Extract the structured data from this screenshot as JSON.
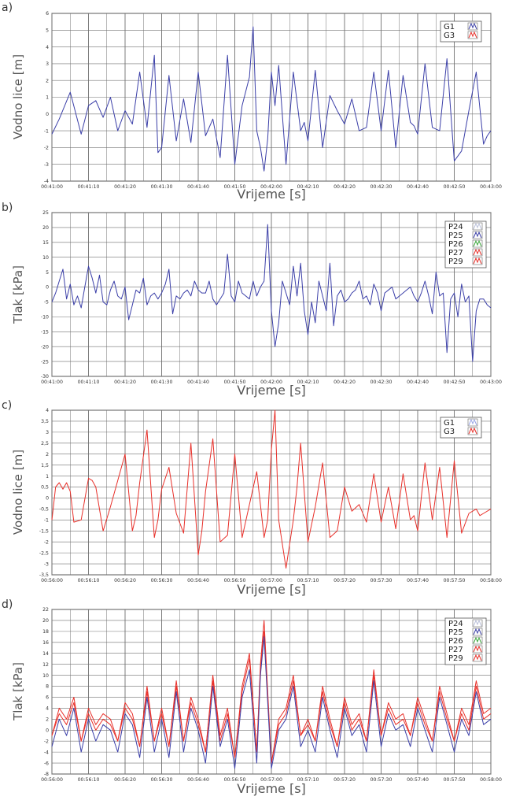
{
  "colors": {
    "blue": "#3b3fa8",
    "red": "#e8302a",
    "green": "#3aa63a",
    "lightblue": "#9aa6e6",
    "grid": "#707070"
  },
  "chart_data": [
    {
      "panel_label": "a)",
      "type": "line",
      "ylabel": "Vodno lice [m]",
      "xlabel": "Vrijeme [s]",
      "ylim": [
        -4,
        6
      ],
      "y_ticks": [
        "-4",
        "-3",
        "-2",
        "-1",
        "0",
        "1",
        "2",
        "3",
        "4",
        "5",
        "6"
      ],
      "x_ticks": [
        "00:41:00",
        "00:41:10",
        "00:41:20",
        "00:41:30",
        "00:41:40",
        "00:41:50",
        "00:42:00",
        "00:42:10",
        "00:42:20",
        "00:42:30",
        "00:42:40",
        "00:42:50",
        "00:43:00"
      ],
      "grid": true,
      "legend_position": "top-right",
      "legend": [
        "G1",
        "G3"
      ],
      "series": [
        {
          "name": "G1",
          "color": "#3b3fa8",
          "x": [
            0,
            2,
            5,
            8,
            10,
            12,
            14,
            16,
            18,
            20,
            22,
            24,
            26,
            28,
            29,
            30,
            32,
            34,
            36,
            38,
            40,
            42,
            44,
            46,
            48,
            50,
            52,
            54,
            55,
            56,
            57,
            58,
            59,
            60,
            61,
            62,
            64,
            66,
            68,
            69,
            70,
            72,
            74,
            76,
            78,
            80,
            82,
            84,
            86,
            88,
            90,
            92,
            94,
            96,
            98,
            99,
            100,
            102,
            104,
            106,
            108,
            110,
            112,
            114,
            116,
            118,
            119,
            120
          ],
          "values": [
            -1.2,
            -0.3,
            1.3,
            -1.2,
            0.5,
            0.8,
            -0.2,
            1.0,
            -1.0,
            0.2,
            -0.6,
            2.5,
            -0.8,
            3.5,
            -2.3,
            -2.0,
            2.3,
            -1.6,
            0.9,
            -1.7,
            2.5,
            -1.3,
            -0.3,
            -2.6,
            3.5,
            -3.0,
            0.5,
            2.2,
            5.2,
            -1.0,
            -2.0,
            -3.4,
            -1.5,
            2.5,
            0.5,
            2.9,
            -3.0,
            2.5,
            -1.0,
            -0.5,
            -1.6,
            2.6,
            -2.0,
            1.1,
            0.2,
            -0.6,
            0.9,
            -1.0,
            -0.8,
            2.5,
            -1.0,
            2.6,
            -2.0,
            2.3,
            -0.5,
            -0.7,
            -1.2,
            3.0,
            -0.8,
            -1.0,
            3.3,
            -2.8,
            -2.2,
            0.2,
            2.5,
            -1.8,
            -1.3,
            -1.0
          ]
        },
        {
          "name": "G3",
          "color": "#e8302a",
          "x": [],
          "values": []
        }
      ]
    },
    {
      "panel_label": "b)",
      "type": "line",
      "ylabel": "Tlak [kPa]",
      "xlabel": "Vrijeme [s]",
      "ylim": [
        -30,
        25
      ],
      "y_ticks": [
        "-30",
        "-25",
        "-20",
        "-15",
        "-10",
        "-5",
        "0",
        "5",
        "10",
        "15",
        "20",
        "25"
      ],
      "x_ticks": [
        "00:41:00",
        "00:41:10",
        "00:41:20",
        "00:41:30",
        "00:41:40",
        "00:41:50",
        "00:42:00",
        "00:42:10",
        "00:42:20",
        "00:42:30",
        "00:42:40",
        "00:42:50",
        "00:43:00"
      ],
      "grid": true,
      "legend_position": "top-right",
      "legend": [
        "P24",
        "P25",
        "P26",
        "P27",
        "P29"
      ],
      "series": [
        {
          "name": "P25",
          "color": "#3b3fa8",
          "x": [
            0,
            1,
            2,
            3,
            4,
            5,
            6,
            7,
            8,
            9,
            10,
            11,
            12,
            13,
            14,
            15,
            16,
            17,
            18,
            19,
            20,
            21,
            22,
            23,
            24,
            25,
            26,
            27,
            28,
            29,
            30,
            31,
            32,
            33,
            34,
            35,
            36,
            37,
            38,
            39,
            40,
            41,
            42,
            43,
            44,
            45,
            46,
            47,
            48,
            49,
            50,
            51,
            52,
            53,
            54,
            55,
            56,
            57,
            58,
            59,
            60,
            61,
            62,
            63,
            64,
            65,
            66,
            67,
            68,
            69,
            70,
            71,
            72,
            73,
            74,
            75,
            76,
            77,
            78,
            79,
            80,
            81,
            82,
            83,
            84,
            85,
            86,
            87,
            88,
            89,
            90,
            91,
            92,
            93,
            94,
            95,
            96,
            97,
            98,
            99,
            100,
            101,
            102,
            103,
            104,
            105,
            106,
            107,
            108,
            109,
            110,
            111,
            112,
            113,
            114,
            115,
            116,
            117,
            118,
            119,
            120
          ],
          "values": [
            -5,
            -2,
            2,
            6,
            -4,
            1,
            -6,
            -3,
            -7,
            0,
            7,
            3,
            -2,
            4,
            -5,
            -6,
            -1,
            2,
            -3,
            -4,
            0,
            -11,
            -6,
            -1,
            -2,
            3,
            -6,
            -3,
            -2,
            -4,
            -2,
            1,
            6,
            -9,
            -3,
            -4,
            -2,
            -1,
            -3,
            2,
            -1,
            -2,
            -2,
            2,
            -4,
            -6,
            -4,
            -2,
            11,
            -3,
            -5,
            2,
            -2,
            -3,
            -4,
            2,
            -3,
            0,
            2,
            21,
            -8,
            -20,
            -12,
            2,
            -2,
            -6,
            7,
            -3,
            8,
            -8,
            -16,
            -5,
            -12,
            2,
            -3,
            -8,
            8,
            -13,
            -3,
            -1,
            -5,
            -4,
            -2,
            -1,
            2,
            -4,
            -3,
            -6,
            1,
            -2,
            -8,
            -2,
            -1,
            0,
            -4,
            -3,
            -2,
            -1,
            0,
            -3,
            -5,
            -2,
            2,
            -3,
            -9,
            5,
            -3,
            -2,
            -22,
            -4,
            -2,
            -10,
            1,
            -5,
            -3,
            -25,
            -8,
            -4,
            -4,
            -6,
            -7
          ]
        }
      ]
    },
    {
      "panel_label": "c)",
      "type": "line",
      "ylabel": "Vodno lice [m]",
      "xlabel": "Vrijeme [s]",
      "ylim": [
        -3.5,
        4
      ],
      "y_ticks": [
        "-3,5",
        "-3",
        "-2,5",
        "-2",
        "-1,5",
        "-1",
        "-0,5",
        "0",
        "0,5",
        "1",
        "1,5",
        "2",
        "2,5",
        "3",
        "3,5",
        "4"
      ],
      "x_ticks": [
        "00:56:00",
        "00:56:10",
        "00:56:20",
        "00:56:30",
        "00:56:40",
        "00:56:50",
        "00:57:00",
        "00:57:10",
        "00:57:20",
        "00:57:30",
        "00:57:40",
        "00:57:50",
        "00:58:00"
      ],
      "grid": true,
      "legend_position": "top-right",
      "legend": [
        "G1",
        "G3"
      ],
      "series": [
        {
          "name": "G1",
          "color": "#9aa6e6",
          "x": [],
          "values": []
        },
        {
          "name": "G3",
          "color": "#e8302a",
          "x": [
            0,
            1,
            2,
            3,
            4,
            5,
            6,
            8,
            10,
            11,
            12,
            14,
            16,
            18,
            20,
            22,
            23,
            24,
            26,
            28,
            29,
            30,
            32,
            34,
            36,
            38,
            40,
            41,
            42,
            44,
            46,
            48,
            50,
            52,
            54,
            56,
            58,
            59,
            60,
            61,
            62,
            64,
            66,
            67,
            68,
            70,
            72,
            74,
            76,
            78,
            80,
            82,
            84,
            86,
            88,
            90,
            92,
            94,
            96,
            98,
            99,
            100,
            102,
            104,
            106,
            108,
            110,
            112,
            114,
            116,
            117,
            118,
            120
          ],
          "values": [
            -1,
            0.5,
            0.7,
            0.4,
            0.7,
            0.3,
            -1.1,
            -1.0,
            0.9,
            0.8,
            0.5,
            -1.5,
            -0.4,
            0.8,
            2,
            -1.5,
            -0.8,
            0.7,
            3.1,
            -1.8,
            -1.0,
            0.4,
            1.4,
            -0.7,
            -1.6,
            2.5,
            -2.6,
            -1.5,
            0.3,
            2.7,
            -2.0,
            -1.7,
            2.0,
            -1.8,
            -0.3,
            1.2,
            -1.8,
            -1.0,
            2.2,
            4.0,
            -1.0,
            -3.2,
            -1.0,
            0.5,
            2.5,
            -2.0,
            -0.4,
            1.6,
            -1.8,
            -1.5,
            0.5,
            -0.6,
            -0.3,
            -1.1,
            1.1,
            -1.1,
            0.5,
            -1.4,
            1.1,
            -1.0,
            -0.8,
            -1.5,
            1.6,
            -1.0,
            1.4,
            -1.8,
            1.7,
            -1.6,
            -0.7,
            -0.5,
            -0.8,
            -0.7,
            -0.5
          ]
        }
      ]
    },
    {
      "panel_label": "d)",
      "type": "line",
      "ylabel": "Tlak [kPa]",
      "xlabel": "Vrijeme [s]",
      "ylim": [
        -8,
        22
      ],
      "y_ticks": [
        "-8",
        "-6",
        "-4",
        "-2",
        "0",
        "2",
        "4",
        "6",
        "8",
        "10",
        "12",
        "14",
        "16",
        "18",
        "20",
        "22"
      ],
      "x_ticks": [
        "00:56:00",
        "00:56:10",
        "00:56:20",
        "00:56:30",
        "00:56:40",
        "00:56:50",
        "00:57:00",
        "00:57:10",
        "00:57:20",
        "00:57:30",
        "00:57:40",
        "00:57:50",
        "00:58:00"
      ],
      "grid": true,
      "legend_position": "top-right",
      "legend": [
        "P24",
        "P25",
        "P26",
        "P27",
        "P29"
      ],
      "series": [
        {
          "name": "P29",
          "color": "#e8302a",
          "x": [
            0,
            2,
            4,
            6,
            8,
            10,
            12,
            14,
            16,
            18,
            20,
            22,
            24,
            26,
            28,
            30,
            32,
            34,
            36,
            38,
            40,
            42,
            44,
            46,
            48,
            50,
            52,
            54,
            56,
            57,
            58,
            60,
            62,
            64,
            66,
            68,
            70,
            72,
            74,
            76,
            78,
            80,
            82,
            84,
            86,
            88,
            90,
            92,
            94,
            96,
            98,
            100,
            102,
            104,
            106,
            108,
            110,
            112,
            114,
            116,
            118,
            120
          ],
          "values": [
            -1,
            4,
            2,
            6,
            -2,
            4,
            1,
            3,
            2,
            -2,
            5,
            3,
            -3,
            8,
            -2,
            4,
            -3,
            9,
            -2,
            6,
            2,
            -4,
            10,
            -1,
            4,
            -5,
            8,
            14,
            -4,
            12,
            20,
            -6,
            2,
            4,
            10,
            -1,
            2,
            -2,
            8,
            2,
            -3,
            6,
            1,
            3,
            -2,
            11,
            -1,
            5,
            2,
            3,
            -1,
            6,
            2,
            -2,
            8,
            3,
            -2,
            4,
            1,
            9,
            3,
            4
          ]
        },
        {
          "name": "P27",
          "color": "#e8302a",
          "x": [
            0,
            2,
            4,
            6,
            8,
            10,
            12,
            14,
            16,
            18,
            20,
            22,
            24,
            26,
            28,
            30,
            32,
            34,
            36,
            38,
            40,
            42,
            44,
            46,
            48,
            50,
            52,
            54,
            56,
            57,
            58,
            60,
            62,
            64,
            66,
            68,
            70,
            72,
            74,
            76,
            78,
            80,
            82,
            84,
            86,
            88,
            90,
            92,
            94,
            96,
            98,
            100,
            102,
            104,
            106,
            108,
            110,
            112,
            114,
            116,
            118,
            120
          ],
          "values": [
            -1,
            3,
            1,
            5,
            -2,
            3,
            0,
            2,
            1,
            -2,
            4,
            2,
            -3,
            7,
            -2,
            3,
            -3,
            8,
            -2,
            5,
            1,
            -4,
            9,
            -2,
            3,
            -5,
            7,
            13,
            -4,
            11,
            18,
            -6,
            1,
            3,
            9,
            -1,
            1,
            -2,
            7,
            1,
            -3,
            5,
            0,
            2,
            -2,
            10,
            -1,
            4,
            1,
            2,
            -1,
            5,
            1,
            -2,
            7,
            2,
            -2,
            3,
            0,
            8,
            2,
            3
          ]
        },
        {
          "name": "P25",
          "color": "#3b3fa8",
          "x": [
            0,
            2,
            4,
            6,
            8,
            10,
            12,
            14,
            16,
            18,
            20,
            22,
            24,
            26,
            28,
            30,
            32,
            34,
            36,
            38,
            40,
            42,
            44,
            46,
            48,
            50,
            52,
            54,
            56,
            57,
            58,
            60,
            62,
            64,
            66,
            68,
            70,
            72,
            74,
            76,
            78,
            80,
            82,
            84,
            86,
            88,
            90,
            92,
            94,
            96,
            98,
            100,
            102,
            104,
            106,
            108,
            110,
            112,
            114,
            116,
            118,
            120
          ],
          "values": [
            -3,
            2,
            -1,
            4,
            -4,
            2,
            -2,
            1,
            0,
            -4,
            3,
            1,
            -5,
            6,
            -4,
            2,
            -5,
            7,
            -4,
            4,
            0,
            -6,
            8,
            -3,
            2,
            -7,
            6,
            11,
            -6,
            10,
            17,
            -7,
            0,
            2,
            8,
            -3,
            0,
            -4,
            6,
            0,
            -5,
            4,
            -1,
            1,
            -4,
            9,
            -3,
            3,
            0,
            1,
            -3,
            4,
            0,
            -4,
            6,
            1,
            -4,
            2,
            -1,
            7,
            1,
            2
          ]
        }
      ]
    }
  ]
}
